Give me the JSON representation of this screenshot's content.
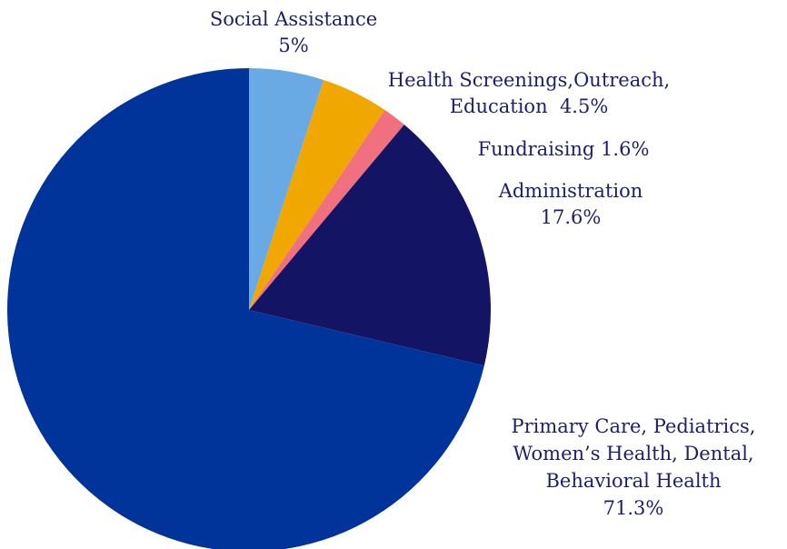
{
  "chart_data": {
    "type": "pie",
    "title": "",
    "slices": [
      {
        "label_lines": [
          "Social Assistance",
          "5%"
        ],
        "label": "Social Assistance",
        "value": 5,
        "value_text": "5%",
        "color": "#6aaae4"
      },
      {
        "label_lines": [
          "Health Screenings,Outreach,",
          "Education  4.5%"
        ],
        "label": "Health Screenings,Outreach, Education",
        "value": 4.5,
        "value_text": "4.5%",
        "color": "#f0a800"
      },
      {
        "label_lines": [
          "Fundraising 1.6%"
        ],
        "label": "Fundraising",
        "value": 1.6,
        "value_text": "1.6%",
        "color": "#f07080"
      },
      {
        "label_lines": [
          "Administration",
          "17.6%"
        ],
        "label": "Administration",
        "value": 17.6,
        "value_text": "17.6%",
        "color": "#141464"
      },
      {
        "label_lines": [
          "Primary Care, Pediatrics,",
          "Women’s Health, Dental,",
          "Behavioral Health",
          "71.3%"
        ],
        "label": "Primary Care, Pediatrics, Women’s Health, Dental, Behavioral Health",
        "value": 71.3,
        "value_text": "71.3%",
        "color": "#00349a"
      }
    ],
    "start_angle_deg": 0,
    "direction": "clockwise",
    "legend": "none",
    "labels": "outside"
  }
}
